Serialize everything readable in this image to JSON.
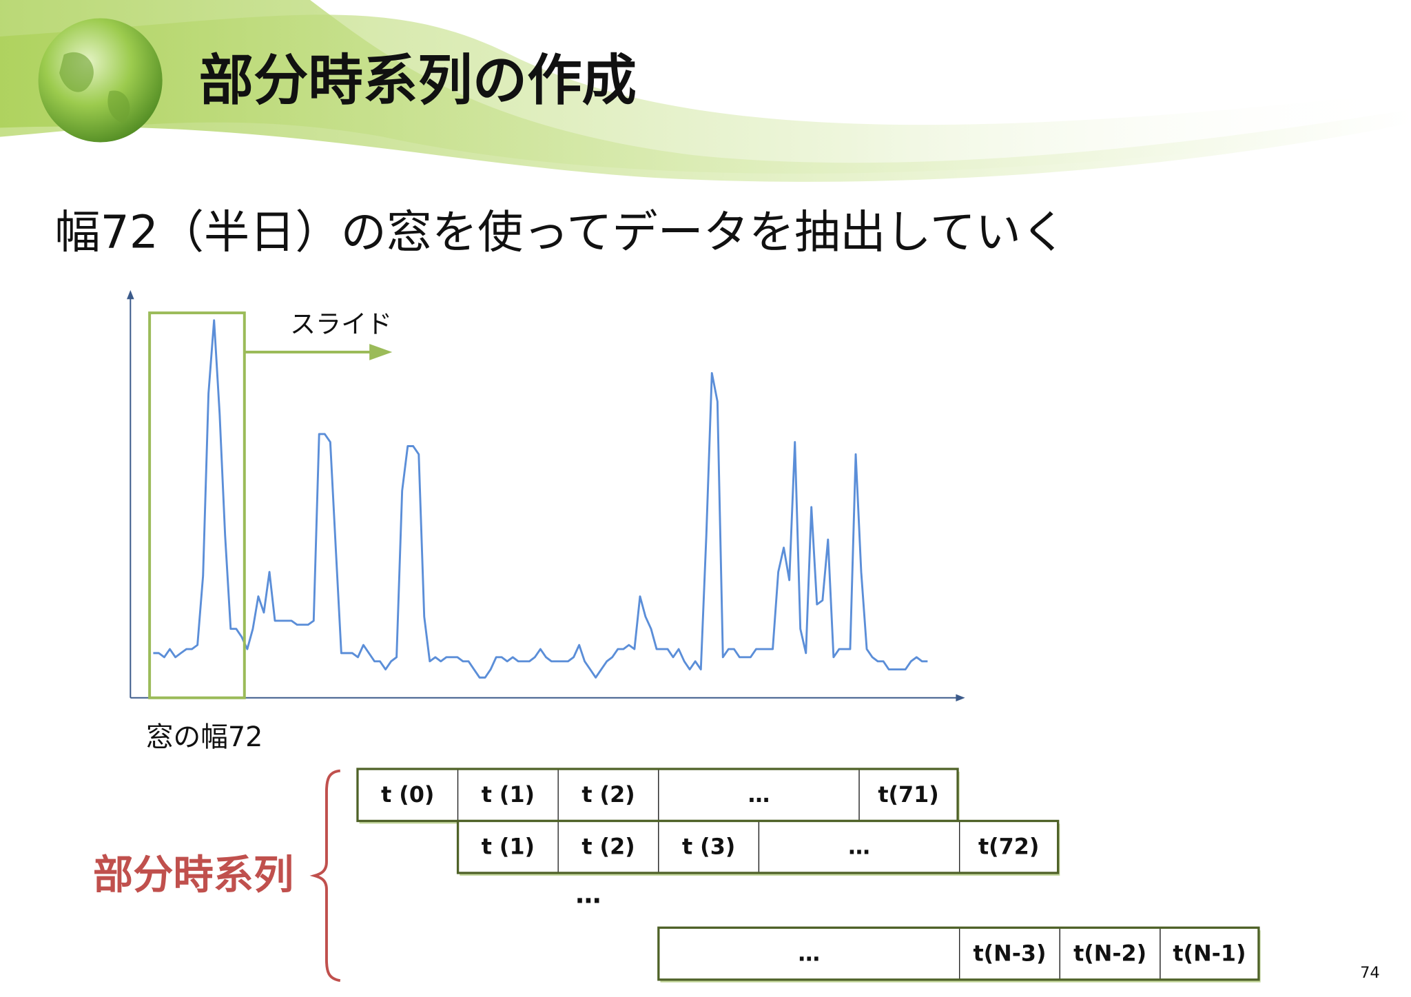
{
  "header": {
    "title": "部分時系列の作成"
  },
  "body": {
    "text": "幅72（半日）の窓を使ってデータを抽出していく"
  },
  "chart_data": {
    "type": "line",
    "color": "#5b8ed8",
    "ylim": [
      0,
      100
    ],
    "values": [
      11,
      11,
      10,
      12,
      10,
      11,
      12,
      12,
      13,
      30,
      75,
      93,
      70,
      40,
      17,
      17,
      15,
      12,
      17,
      25,
      21,
      31,
      19,
      19,
      19,
      19,
      18,
      18,
      18,
      19,
      65,
      65,
      63,
      37,
      11,
      11,
      11,
      10,
      13,
      11,
      9,
      9,
      7,
      9,
      10,
      51,
      62,
      62,
      60,
      20,
      9,
      10,
      9,
      10,
      10,
      10,
      9,
      9,
      7,
      5,
      5,
      7,
      10,
      10,
      9,
      10,
      9,
      9,
      9,
      10,
      12,
      10,
      9,
      9,
      9,
      9,
      10,
      13,
      9,
      7,
      5,
      7,
      9,
      10,
      12,
      12,
      13,
      12,
      25,
      20,
      17,
      12,
      12,
      12,
      10,
      12,
      9,
      7,
      9,
      7,
      40,
      80,
      73,
      10,
      12,
      12,
      10,
      10,
      10,
      12,
      12,
      12,
      12,
      31,
      37,
      29,
      63,
      17,
      11,
      47,
      23,
      24,
      39,
      10,
      12,
      12,
      12,
      60,
      31,
      12,
      10,
      9,
      9,
      7,
      7,
      7,
      7,
      9,
      10,
      9,
      9
    ],
    "window_color": "#9bbb59",
    "annotation": "スライド",
    "window_label": "窓の幅72"
  },
  "subsequences": {
    "label": "部分時系列",
    "rows": [
      [
        "t (0)",
        "t (1)",
        "t (2)",
        "…",
        "t(71)"
      ],
      [
        "t (1)",
        "t (2)",
        "t (3)",
        "…",
        "t(72)"
      ],
      [
        "…",
        "t(N-3)",
        "t(N-2)",
        "t(N-1)"
      ]
    ],
    "ellipsis": "…"
  },
  "page_number": 74
}
